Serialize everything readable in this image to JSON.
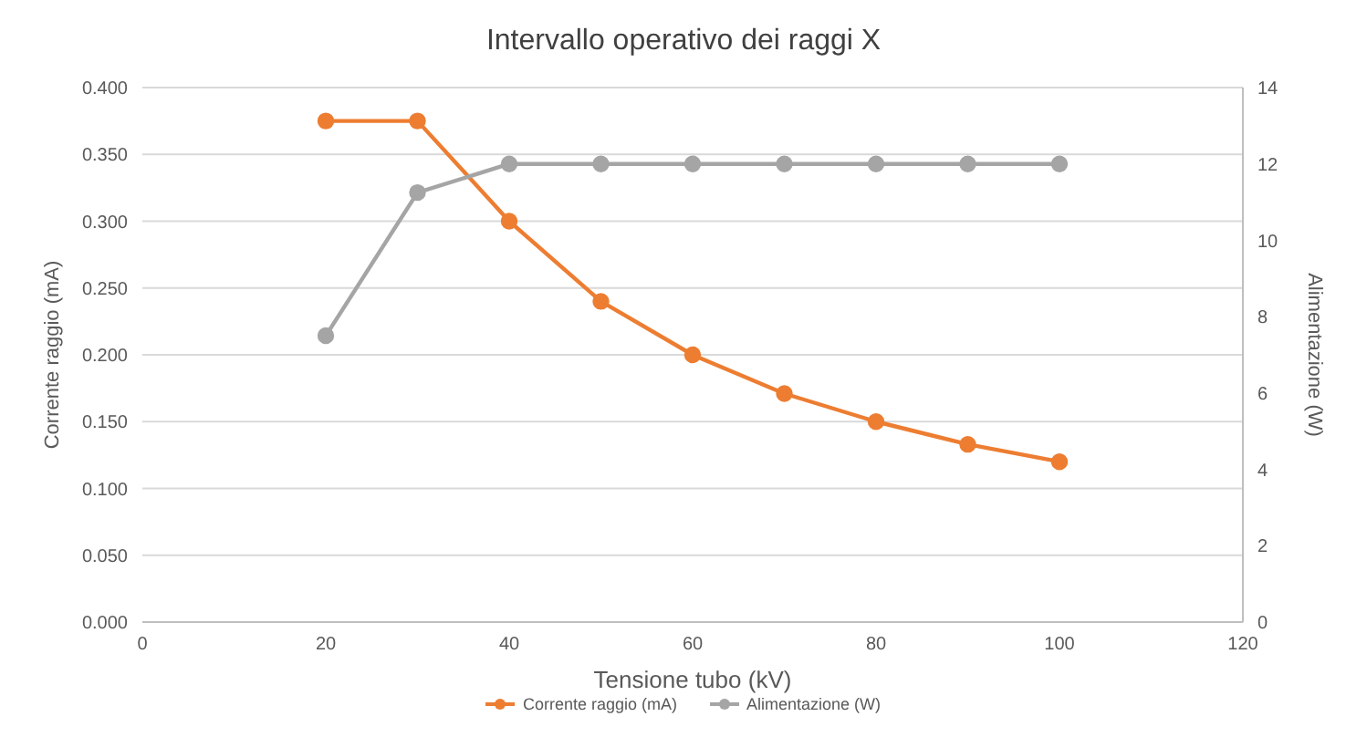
{
  "chart_data": {
    "type": "line",
    "title": "Intervallo operativo dei raggi X",
    "xlabel": "Tensione tubo (kV)",
    "ylabel": "Corrente raggio (mA)",
    "y2label": "Alimentazione (W)",
    "x": [
      20,
      30,
      40,
      50,
      60,
      70,
      80,
      90,
      100
    ],
    "series": [
      {
        "name": "Corrente raggio (mA)",
        "color": "#ed7d31",
        "values": [
          0.375,
          0.375,
          0.3,
          0.24,
          0.2,
          0.171,
          0.15,
          0.133,
          0.12
        ]
      },
      {
        "name": "Alimentazione (W)",
        "color": "#a5a5a5",
        "axis": "y2",
        "values": [
          7.5,
          11.25,
          12,
          12,
          12,
          12,
          12,
          12,
          12
        ]
      }
    ],
    "xlim": [
      0,
      120
    ],
    "xticks": [
      0,
      20,
      40,
      60,
      80,
      100,
      120
    ],
    "ylim": [
      0,
      0.4
    ],
    "yticks": [
      {
        "value": 0,
        "label": "0.000"
      },
      {
        "value": 0.05,
        "label": "0.050"
      },
      {
        "value": 0.1,
        "label": "0.100"
      },
      {
        "value": 0.15,
        "label": "0.150"
      },
      {
        "value": 0.2,
        "label": "0.200"
      },
      {
        "value": 0.25,
        "label": "0.250"
      },
      {
        "value": 0.3,
        "label": "0.300"
      },
      {
        "value": 0.35,
        "label": "0.350"
      },
      {
        "value": 0.4,
        "label": "0.400"
      }
    ],
    "y2lim": [
      0,
      14
    ],
    "y2ticks": [
      0,
      2,
      4,
      6,
      8,
      10,
      12,
      14
    ],
    "grid": "y",
    "legend": "bottom",
    "marker": "circle",
    "line_style": "solid"
  }
}
